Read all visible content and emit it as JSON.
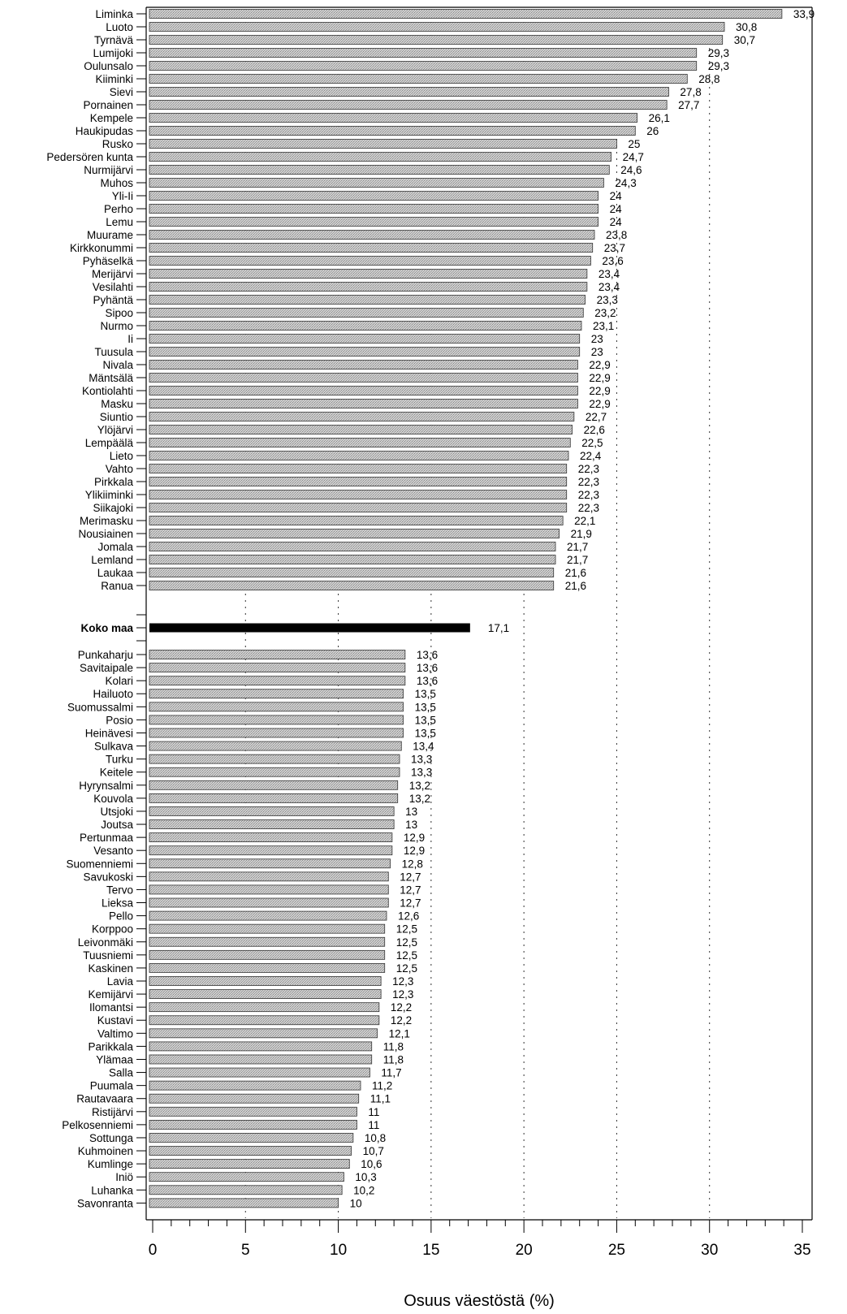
{
  "chart_data": {
    "type": "bar",
    "orientation": "horizontal",
    "title": "",
    "xlabel": "Osuus väestöstä (%)",
    "ylabel": "",
    "xlim": [
      0,
      35
    ],
    "xticks": [
      "0",
      "5",
      "10",
      "15",
      "20",
      "25",
      "30",
      "35"
    ],
    "grid": "dashed vertical lines at 5, 10, 15, 20, 25, 30",
    "colors": {
      "bar": "#c4c4c4",
      "highlight": "#000000",
      "axis": "#000000"
    },
    "top_group": {
      "categories": [
        "Liminka",
        "Luoto",
        "Tyrnävä",
        "Lumijoki",
        "Oulunsalo",
        "Kiiminki",
        "Sievi",
        "Pornainen",
        "Kempele",
        "Haukipudas",
        "Rusko",
        "Pedersören kunta",
        "Nurmijärvi",
        "Muhos",
        "Yli-Ii",
        "Perho",
        "Lemu",
        "Muurame",
        "Kirkkonummi",
        "Pyhäselkä",
        "Merijärvi",
        "Vesilahti",
        "Pyhäntä",
        "Sipoo",
        "Nurmo",
        "Ii",
        "Tuusula",
        "Nivala",
        "Mäntsälä",
        "Kontiolahti",
        "Masku",
        "Siuntio",
        "Ylöjärvi",
        "Lempäälä",
        "Lieto",
        "Vahto",
        "Pirkkala",
        "Ylikiiminki",
        "Siikajoki",
        "Merimasku",
        "Nousiainen",
        "Jomala",
        "Lemland",
        "Laukaa",
        "Ranua"
      ],
      "values": [
        33.9,
        30.8,
        30.7,
        29.3,
        29.3,
        28.8,
        27.8,
        27.7,
        26.1,
        26,
        25,
        24.7,
        24.6,
        24.3,
        24,
        24,
        24,
        23.8,
        23.7,
        23.6,
        23.4,
        23.4,
        23.3,
        23.2,
        23.1,
        23,
        23,
        22.9,
        22.9,
        22.9,
        22.9,
        22.7,
        22.6,
        22.5,
        22.4,
        22.3,
        22.3,
        22.3,
        22.3,
        22.1,
        21.9,
        21.7,
        21.7,
        21.6,
        21.6
      ],
      "labels": [
        "33,9",
        "30,8",
        "30,7",
        "29,3",
        "29,3",
        "28,8",
        "27,8",
        "27,7",
        "26,1",
        "26",
        "25",
        "24,7",
        "24,6",
        "24,3",
        "24",
        "24",
        "24",
        "23,8",
        "23,7",
        "23,6",
        "23,4",
        "23,4",
        "23,3",
        "23,2",
        "23,1",
        "23",
        "23",
        "22,9",
        "22,9",
        "22,9",
        "22,9",
        "22,7",
        "22,6",
        "22,5",
        "22,4",
        "22,3",
        "22,3",
        "22,3",
        "22,3",
        "22,1",
        "21,9",
        "21,7",
        "21,7",
        "21,6",
        "21,6"
      ]
    },
    "reference": {
      "category": "Koko maa",
      "value": 17.1,
      "label": "17,1"
    },
    "bottom_group": {
      "categories": [
        "Punkaharju",
        "Savitaipale",
        "Kolari",
        "Hailuoto",
        "Suomussalmi",
        "Posio",
        "Heinävesi",
        "Sulkava",
        "Turku",
        "Keitele",
        "Hyrynsalmi",
        "Kouvola",
        "Utsjoki",
        "Joutsa",
        "Pertunmaa",
        "Vesanto",
        "Suomenniemi",
        "Savukoski",
        "Tervo",
        "Lieksa",
        "Pello",
        "Korppoo",
        "Leivonmäki",
        "Tuusniemi",
        "Kaskinen",
        "Lavia",
        "Kemijärvi",
        "Ilomantsi",
        "Kustavi",
        "Valtimo",
        "Parikkala",
        "Ylämaa",
        "Salla",
        "Puumala",
        "Rautavaara",
        "Ristijärvi",
        "Pelkosenniemi",
        "Sottunga",
        "Kuhmoinen",
        "Kumlinge",
        "Iniö",
        "Luhanka",
        "Savonranta"
      ],
      "values": [
        13.6,
        13.6,
        13.6,
        13.5,
        13.5,
        13.5,
        13.5,
        13.4,
        13.3,
        13.3,
        13.2,
        13.2,
        13,
        13,
        12.9,
        12.9,
        12.8,
        12.7,
        12.7,
        12.7,
        12.6,
        12.5,
        12.5,
        12.5,
        12.5,
        12.3,
        12.3,
        12.2,
        12.2,
        12.1,
        11.8,
        11.8,
        11.7,
        11.2,
        11.1,
        11,
        11,
        10.8,
        10.7,
        10.6,
        10.3,
        10.2,
        10
      ],
      "labels": [
        "13,6",
        "13,6",
        "13,6",
        "13,5",
        "13,5",
        "13,5",
        "13,5",
        "13,4",
        "13,3",
        "13,3",
        "13,2",
        "13,2",
        "13",
        "13",
        "12,9",
        "12,9",
        "12,8",
        "12,7",
        "12,7",
        "12,7",
        "12,6",
        "12,5",
        "12,5",
        "12,5",
        "12,5",
        "12,3",
        "12,3",
        "12,2",
        "12,2",
        "12,1",
        "11,8",
        "11,8",
        "11,7",
        "11,2",
        "11,1",
        "11",
        "11",
        "10,8",
        "10,7",
        "10,6",
        "10,3",
        "10,2",
        "10"
      ]
    }
  }
}
